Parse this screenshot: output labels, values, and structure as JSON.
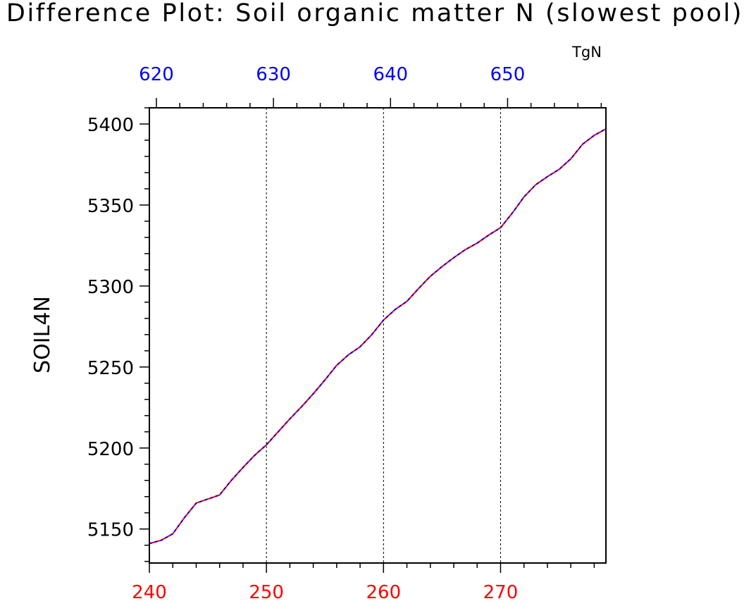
{
  "chart_data": {
    "type": "line",
    "title": "Difference Plot: Soil organic matter N (slowest pool)",
    "units": "TgN",
    "ylabel": "SOIL4N",
    "ylim": [
      5129,
      5410
    ],
    "yticks": [
      5150,
      5200,
      5250,
      5300,
      5350,
      5400
    ],
    "grid": "vertical-dashed",
    "x_bottom": {
      "color": "#ff0000",
      "range": [
        240,
        279
      ],
      "ticks": [
        240,
        250,
        260,
        270
      ]
    },
    "x_top": {
      "color": "#0000ff",
      "range": [
        619.4,
        658.4
      ],
      "ticks": [
        620,
        630,
        640,
        650
      ]
    },
    "series": [
      {
        "color": "#ff0000",
        "style": "solid",
        "x": [
          240,
          241,
          242,
          243,
          244,
          245,
          246,
          247,
          248,
          249,
          250,
          251,
          252,
          253,
          254,
          255,
          256,
          257,
          258,
          259,
          260,
          261,
          262,
          263,
          264,
          265,
          266,
          267,
          268,
          269,
          270,
          271,
          272,
          273,
          274,
          275,
          276,
          277,
          278,
          279
        ],
        "values": [
          5141,
          5143,
          5147,
          5157,
          5166,
          5168.5,
          5171,
          5180,
          5188,
          5195.5,
          5202,
          5210,
          5218,
          5225.5,
          5233.5,
          5242,
          5251,
          5257.5,
          5262.5,
          5270,
          5279,
          5285.5,
          5290.5,
          5298.5,
          5306,
          5312,
          5317.5,
          5322.5,
          5326.5,
          5331.5,
          5336,
          5345,
          5355,
          5362.5,
          5367.5,
          5372,
          5378.5,
          5387.5,
          5393,
          5397
        ]
      },
      {
        "color": "#0000ff",
        "style": "dashed",
        "x": [
          240,
          241,
          242,
          243,
          244,
          245,
          246,
          247,
          248,
          249,
          250,
          251,
          252,
          253,
          254,
          255,
          256,
          257,
          258,
          259,
          260,
          261,
          262,
          263,
          264,
          265,
          266,
          267,
          268,
          269,
          270,
          271,
          272,
          273,
          274,
          275,
          276,
          277,
          278,
          279
        ],
        "values": [
          5141,
          5143,
          5147,
          5157,
          5166,
          5168.5,
          5171,
          5180,
          5188,
          5195.5,
          5202,
          5210,
          5218,
          5225.5,
          5233.5,
          5242,
          5251,
          5257.5,
          5262.5,
          5270,
          5279,
          5285.5,
          5290.5,
          5298.5,
          5306,
          5312,
          5317.5,
          5322.5,
          5326.5,
          5331.5,
          5336,
          5345,
          5355,
          5362.5,
          5367.5,
          5372,
          5378.5,
          5387.5,
          5393,
          5397
        ]
      }
    ]
  }
}
